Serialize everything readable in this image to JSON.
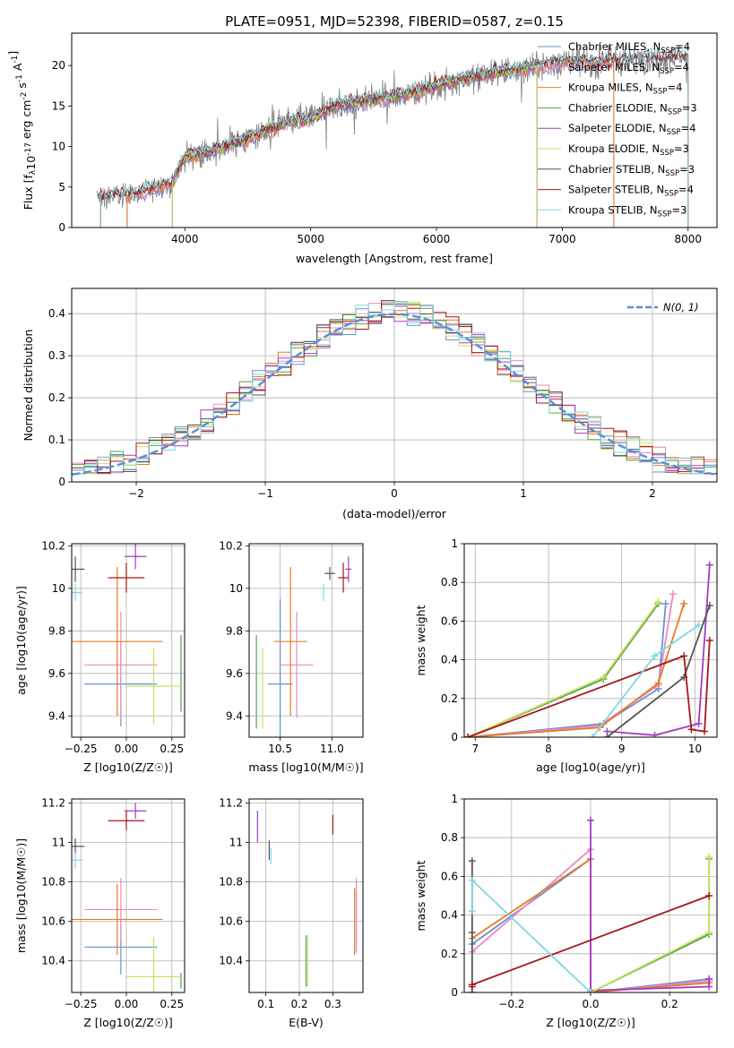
{
  "figure": {
    "title": "PLATE=0951, MJD=52398, FIBERID=0587, z=0.15"
  },
  "colors": {
    "Chabrier MILES": "#6b8fd6",
    "Salpeter MILES": "#e989c2",
    "Kroupa MILES": "#e87b1f",
    "Chabrier ELODIE": "#52a052",
    "Salpeter ELODIE": "#a33bc3",
    "Kroupa ELODIE": "#c9e25a",
    "Chabrier STELIB": "#555555",
    "Salpeter STELIB": "#a8161b",
    "Kroupa STELIB": "#7fd9e2",
    "data": "#808080",
    "gauss": "#5b8fd6"
  },
  "chart_data": [
    {
      "id": "spectrum",
      "type": "line",
      "title": "PLATE=0951, MJD=52398, FIBERID=0587, z=0.15",
      "xlabel": "wavelength [Angstrom, rest frame]",
      "ylabel": "Flux [f$_\\lambda$10$^{-17}$ erg cm$^{-2}$ s$^{-1}$ A$^{-1}$]",
      "xlim": [
        3100,
        8230
      ],
      "ylim": [
        0,
        24
      ],
      "xticks": [
        4000,
        5000,
        6000,
        7000,
        8000
      ],
      "yticks": [
        0,
        5,
        10,
        15,
        20
      ],
      "grid": false,
      "legend": "top-right",
      "legend_entries": [
        {
          "label": "Chabrier MILES, N",
          "sub": "SSP",
          "suffix": "=4",
          "color_key": "Chabrier MILES"
        },
        {
          "label": "Salpeter MILES, N",
          "sub": "SSP",
          "suffix": "=4",
          "color_key": "Salpeter MILES"
        },
        {
          "label": "Kroupa MILES, N",
          "sub": "SSP",
          "suffix": "=4",
          "color_key": "Kroupa MILES"
        },
        {
          "label": "Chabrier ELODIE, N",
          "sub": "SSP",
          "suffix": "=3",
          "color_key": "Chabrier ELODIE"
        },
        {
          "label": "Salpeter ELODIE, N",
          "sub": "SSP",
          "suffix": "=4",
          "color_key": "Salpeter ELODIE"
        },
        {
          "label": "Kroupa ELODIE, N",
          "sub": "SSP",
          "suffix": "=3",
          "color_key": "Kroupa ELODIE"
        },
        {
          "label": "Chabrier STELIB, N",
          "sub": "SSP",
          "suffix": "=3",
          "color_key": "Chabrier STELIB"
        },
        {
          "label": "Salpeter STELIB, N",
          "sub": "SSP",
          "suffix": "=4",
          "color_key": "Salpeter STELIB"
        },
        {
          "label": "Kroupa STELIB, N",
          "sub": "SSP",
          "suffix": "=3",
          "color_key": "Kroupa STELIB"
        }
      ],
      "continuum_knots": [
        [
          3300,
          3.8
        ],
        [
          3500,
          3.9
        ],
        [
          3700,
          4.6
        ],
        [
          3900,
          5.5
        ],
        [
          4000,
          8.8
        ],
        [
          4200,
          9.3
        ],
        [
          4500,
          11.0
        ],
        [
          4800,
          13.0
        ],
        [
          5000,
          13.4
        ],
        [
          5200,
          15.0
        ],
        [
          5500,
          15.8
        ],
        [
          5800,
          16.6
        ],
        [
          6000,
          17.5
        ],
        [
          6200,
          18.3
        ],
        [
          6500,
          19.2
        ],
        [
          6800,
          19.8
        ],
        [
          7000,
          20.5
        ],
        [
          7300,
          20.4
        ],
        [
          7600,
          20.8
        ],
        [
          8000,
          21.2
        ]
      ],
      "model_coverage": {
        "MILES": [
          3540,
          7410
        ],
        "ELODIE": [
          3900,
          6800
        ],
        "STELIB": [
          3330,
          8000
        ]
      }
    },
    {
      "id": "residuals",
      "type": "histogram",
      "xlabel": "(data-model)/error",
      "ylabel": "Normed distribution",
      "xlim": [
        -2.5,
        2.5
      ],
      "ylim": [
        0,
        0.46
      ],
      "xticks": [
        -2,
        -1,
        0,
        1,
        2
      ],
      "yticks": [
        0,
        0.1,
        0.2,
        0.3,
        0.4
      ],
      "grid": true,
      "legend": "top-right",
      "legend_entries": [
        {
          "label": "N(0, 1)",
          "style": "dashed",
          "color_key": "gauss"
        }
      ],
      "bin_width": 0.1,
      "bin_start": -2.5,
      "series_colors": [
        "Chabrier MILES",
        "Salpeter MILES",
        "Kroupa MILES",
        "Chabrier ELODIE",
        "Salpeter ELODIE",
        "Kroupa ELODIE",
        "Chabrier STELIB",
        "Salpeter STELIB",
        "Kroupa STELIB"
      ]
    },
    {
      "id": "age-vs-z",
      "type": "errorbar",
      "xlabel": "Z [log10(Z/Z☉)]",
      "ylabel": "age [log10(age/yr)]",
      "xlim": [
        -0.3,
        0.32
      ],
      "ylim": [
        9.3,
        10.21
      ],
      "xticks": [
        -0.25,
        0.0,
        0.25
      ],
      "xticklabels": [
        "−0.25",
        "0.00",
        "0.25"
      ],
      "yticks": [
        9.4,
        9.6,
        9.8,
        10.0,
        10.2
      ],
      "grid": true,
      "points": [
        {
          "key": "Chabrier MILES",
          "x": -0.03,
          "xerr": 0.2,
          "y": 9.55,
          "yerr": 0.2
        },
        {
          "key": "Salpeter MILES",
          "x": -0.03,
          "xerr": 0.2,
          "y": 9.64,
          "yerr": 0.25
        },
        {
          "key": "Kroupa MILES",
          "x": -0.05,
          "xerr": 0.25,
          "y": 9.75,
          "yerr": 0.35
        },
        {
          "key": "Chabrier ELODIE",
          "x": 0.3,
          "xerr": 0.0,
          "y": 9.6,
          "yerr": 0.18
        },
        {
          "key": "Salpeter ELODIE",
          "x": 0.05,
          "xerr": 0.06,
          "y": 10.15,
          "yerr": 0.06
        },
        {
          "key": "Kroupa ELODIE",
          "x": 0.15,
          "xerr": 0.15,
          "y": 9.54,
          "yerr": 0.18
        },
        {
          "key": "Chabrier STELIB",
          "x": -0.28,
          "xerr": 0.05,
          "y": 10.09,
          "yerr": 0.06
        },
        {
          "key": "Salpeter STELIB",
          "x": 0.0,
          "xerr": 0.1,
          "y": 10.05,
          "yerr": 0.07
        },
        {
          "key": "Kroupa STELIB",
          "x": -0.28,
          "xerr": 0.04,
          "y": 9.98,
          "yerr": 0.04
        }
      ]
    },
    {
      "id": "age-vs-mass",
      "type": "errorbar",
      "xlabel": "mass [log10(M/M☉)]",
      "ylabel": "",
      "xlim": [
        10.2,
        11.3
      ],
      "ylim": [
        9.3,
        10.21
      ],
      "xticks": [
        10.5,
        11.0
      ],
      "xticklabels": [
        "10.5",
        "11.0"
      ],
      "yticks": [
        9.4,
        9.6,
        9.8,
        10.0,
        10.2
      ],
      "grid": true,
      "points": [
        {
          "key": "Chabrier MILES",
          "x": 10.5,
          "xerr": 0.12,
          "y": 9.55,
          "yerr": 0.4
        },
        {
          "key": "Salpeter MILES",
          "x": 10.66,
          "xerr": 0.16,
          "y": 9.64,
          "yerr": 0.25
        },
        {
          "key": "Kroupa MILES",
          "x": 10.6,
          "xerr": 0.16,
          "y": 9.75,
          "yerr": 0.35
        },
        {
          "key": "Chabrier ELODIE",
          "x": 10.27,
          "xerr": 0.0,
          "y": 9.56,
          "yerr": 0.22
        },
        {
          "key": "Salpeter ELODIE",
          "x": 11.16,
          "xerr": 0.03,
          "y": 10.09,
          "yerr": 0.06
        },
        {
          "key": "Kroupa ELODIE",
          "x": 10.33,
          "xerr": 0.0,
          "y": 9.53,
          "yerr": 0.19
        },
        {
          "key": "Chabrier STELIB",
          "x": 10.98,
          "xerr": 0.05,
          "y": 10.07,
          "yerr": 0.03
        },
        {
          "key": "Salpeter STELIB",
          "x": 11.11,
          "xerr": 0.05,
          "y": 10.05,
          "yerr": 0.07
        },
        {
          "key": "Kroupa STELIB",
          "x": 10.92,
          "xerr": 0.0,
          "y": 9.98,
          "yerr": 0.04
        }
      ]
    },
    {
      "id": "weight-vs-age",
      "type": "line",
      "xlabel": "age [log10(age/yr)]",
      "ylabel": "mass weight",
      "xlim": [
        6.85,
        10.3
      ],
      "ylim": [
        0,
        1
      ],
      "xticks": [
        7,
        8,
        9,
        10
      ],
      "yticks": [
        0.0,
        0.2,
        0.4,
        0.6,
        0.8,
        1.0
      ],
      "grid": true,
      "series": [
        {
          "key": "Chabrier MILES",
          "x": [
            6.9,
            8.75,
            9.5,
            9.6
          ],
          "y": [
            0.0,
            0.07,
            0.25,
            0.69
          ]
        },
        {
          "key": "Salpeter MILES",
          "x": [
            6.9,
            8.7,
            9.5,
            9.7
          ],
          "y": [
            0.0,
            0.06,
            0.27,
            0.74
          ]
        },
        {
          "key": "Kroupa MILES",
          "x": [
            6.9,
            8.7,
            9.5,
            9.85
          ],
          "y": [
            0.0,
            0.05,
            0.28,
            0.69
          ]
        },
        {
          "key": "Chabrier ELODIE",
          "x": [
            6.9,
            8.75,
            9.5
          ],
          "y": [
            0.0,
            0.3,
            0.69
          ]
        },
        {
          "key": "Salpeter ELODIE",
          "x": [
            8.8,
            9.45,
            10.05,
            10.2
          ],
          "y": [
            0.03,
            0.01,
            0.07,
            0.89
          ]
        },
        {
          "key": "Kroupa ELODIE",
          "x": [
            6.9,
            8.75,
            9.5
          ],
          "y": [
            0.0,
            0.31,
            0.7
          ]
        },
        {
          "key": "Chabrier STELIB",
          "x": [
            8.8,
            9.85,
            10.2
          ],
          "y": [
            0.0,
            0.31,
            0.68
          ]
        },
        {
          "key": "Salpeter STELIB",
          "x": [
            6.9,
            9.85,
            9.95,
            10.13,
            10.2
          ],
          "y": [
            0.0,
            0.42,
            0.04,
            0.03,
            0.5
          ]
        },
        {
          "key": "Kroupa STELIB",
          "x": [
            8.6,
            9.45,
            10.05
          ],
          "y": [
            0.0,
            0.42,
            0.58
          ]
        }
      ]
    },
    {
      "id": "mass-vs-z",
      "type": "errorbar",
      "xlabel": "Z [log10(Z/Z☉)]",
      "ylabel": "mass [log10(M/M☉)]",
      "xlim": [
        -0.3,
        0.32
      ],
      "ylim": [
        10.24,
        11.22
      ],
      "xticks": [
        -0.25,
        0.0,
        0.25
      ],
      "xticklabels": [
        "−0.25",
        "0.00",
        "0.25"
      ],
      "yticks": [
        10.4,
        10.6,
        10.8,
        11.0,
        11.2
      ],
      "grid": true,
      "points": [
        {
          "key": "Chabrier MILES",
          "x": -0.03,
          "xerr": 0.2,
          "y": 10.47,
          "yerr": 0.14
        },
        {
          "key": "Salpeter MILES",
          "x": -0.03,
          "xerr": 0.2,
          "y": 10.66,
          "yerr": 0.16
        },
        {
          "key": "Kroupa MILES",
          "x": -0.05,
          "xerr": 0.25,
          "y": 10.61,
          "yerr": 0.18
        },
        {
          "key": "Chabrier ELODIE",
          "x": 0.3,
          "xerr": 0.0,
          "y": 10.3,
          "yerr": 0.04
        },
        {
          "key": "Salpeter ELODIE",
          "x": 0.05,
          "xerr": 0.06,
          "y": 11.16,
          "yerr": 0.04
        },
        {
          "key": "Kroupa ELODIE",
          "x": 0.15,
          "xerr": 0.15,
          "y": 10.32,
          "yerr": 0.2
        },
        {
          "key": "Chabrier STELIB",
          "x": -0.28,
          "xerr": 0.05,
          "y": 10.98,
          "yerr": 0.04
        },
        {
          "key": "Salpeter STELIB",
          "x": 0.0,
          "xerr": 0.1,
          "y": 11.11,
          "yerr": 0.05
        },
        {
          "key": "Kroupa STELIB",
          "x": -0.28,
          "xerr": 0.04,
          "y": 10.91,
          "yerr": 0.04
        }
      ]
    },
    {
      "id": "mass-vs-ebv",
      "type": "errorbar",
      "xlabel": "E(B-V)",
      "ylabel": "",
      "xlim": [
        0.05,
        0.39
      ],
      "ylim": [
        10.24,
        11.22
      ],
      "xticks": [
        0.1,
        0.2,
        0.3
      ],
      "xticklabels": [
        "0.1",
        "0.2",
        "0.3"
      ],
      "yticks": [
        10.4,
        10.6,
        10.8,
        11.0,
        11.2
      ],
      "grid": true,
      "points": [
        {
          "key": "Chabrier MILES",
          "x": 0.37,
          "xerr": 0.0,
          "y": 10.6,
          "yerr": 0.15
        },
        {
          "key": "Salpeter MILES",
          "x": 0.37,
          "xerr": 0.0,
          "y": 10.63,
          "yerr": 0.19
        },
        {
          "key": "Kroupa MILES",
          "x": 0.365,
          "xerr": 0.0,
          "y": 10.6,
          "yerr": 0.17
        },
        {
          "key": "Chabrier ELODIE",
          "x": 0.22,
          "xerr": 0.0,
          "y": 10.4,
          "yerr": 0.13
        },
        {
          "key": "Salpeter ELODIE",
          "x": 0.075,
          "xerr": 0.0,
          "y": 11.08,
          "yerr": 0.08
        },
        {
          "key": "Kroupa ELODIE",
          "x": 0.225,
          "xerr": 0.0,
          "y": 10.4,
          "yerr": 0.13
        },
        {
          "key": "Chabrier STELIB",
          "x": 0.11,
          "xerr": 0.0,
          "y": 10.96,
          "yerr": 0.05
        },
        {
          "key": "Salpeter STELIB",
          "x": 0.3,
          "xerr": 0.0,
          "y": 11.09,
          "yerr": 0.05
        },
        {
          "key": "Kroupa STELIB",
          "x": 0.115,
          "xerr": 0.0,
          "y": 10.93,
          "yerr": 0.04
        }
      ]
    },
    {
      "id": "weight-vs-z",
      "type": "line",
      "xlabel": "Z [log10(Z/Z☉)]",
      "ylabel": "mass weight",
      "xlim": [
        -0.32,
        0.32
      ],
      "ylim": [
        0,
        1
      ],
      "xticks": [
        -0.2,
        0.0,
        0.2
      ],
      "xticklabels": [
        "−0.2",
        "0.0",
        "0.2"
      ],
      "yticks": [
        0.0,
        0.2,
        0.4,
        0.6,
        0.8,
        1.0
      ],
      "grid": true,
      "series": [
        {
          "key": "Chabrier MILES",
          "x": [
            -0.3,
            0.0,
            0.0,
            0.3
          ],
          "y": [
            0.25,
            0.69,
            0.0,
            0.07
          ]
        },
        {
          "key": "Salpeter MILES",
          "x": [
            -0.3,
            0.0,
            0.0,
            0.3
          ],
          "y": [
            0.21,
            0.74,
            0.0,
            0.06
          ]
        },
        {
          "key": "Kroupa MILES",
          "x": [
            -0.3,
            0.0,
            0.0,
            0.3
          ],
          "y": [
            0.28,
            0.69,
            0.0,
            0.05
          ]
        },
        {
          "key": "Chabrier ELODIE",
          "x": [
            0.0,
            0.3,
            0.3
          ],
          "y": [
            0.0,
            0.3,
            0.69
          ]
        },
        {
          "key": "Salpeter ELODIE",
          "x": [
            0.0,
            0.0,
            0.3,
            0.3
          ],
          "y": [
            0.89,
            0.01,
            0.03,
            0.07
          ]
        },
        {
          "key": "Kroupa ELODIE",
          "x": [
            0.0,
            0.3,
            0.3
          ],
          "y": [
            0.0,
            0.31,
            0.7
          ]
        },
        {
          "key": "Chabrier STELIB",
          "x": [
            -0.3,
            -0.3,
            -0.3
          ],
          "y": [
            0.68,
            0.31,
            0.0
          ]
        },
        {
          "key": "Salpeter STELIB",
          "x": [
            -0.3,
            -0.3,
            0.3
          ],
          "y": [
            0.03,
            0.04,
            0.5
          ]
        },
        {
          "key": "Kroupa STELIB",
          "x": [
            -0.3,
            -0.3,
            0.0
          ],
          "y": [
            0.42,
            0.58,
            0.0
          ]
        }
      ]
    }
  ]
}
